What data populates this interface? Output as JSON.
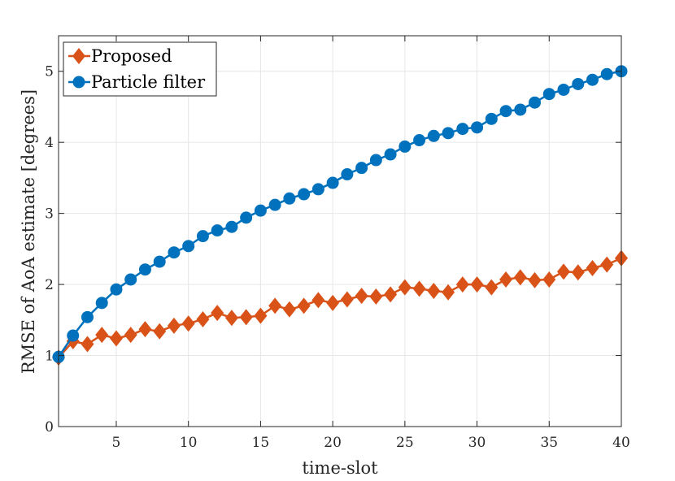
{
  "chart_data": {
    "type": "line",
    "xlabel": "time-slot",
    "ylabel": "RMSE of AoA estimate [degrees]",
    "xlim": [
      1,
      40
    ],
    "ylim": [
      0,
      5.5
    ],
    "xticks": [
      5,
      10,
      15,
      20,
      25,
      30,
      35,
      40
    ],
    "yticks": [
      0,
      1,
      2,
      3,
      4,
      5
    ],
    "grid": true,
    "legend_position": "top-left",
    "x": [
      1,
      2,
      3,
      4,
      5,
      6,
      7,
      8,
      9,
      10,
      11,
      12,
      13,
      14,
      15,
      16,
      17,
      18,
      19,
      20,
      21,
      22,
      23,
      24,
      25,
      26,
      27,
      28,
      29,
      30,
      31,
      32,
      33,
      34,
      35,
      36,
      37,
      38,
      39,
      40
    ],
    "series": [
      {
        "name": "Proposed",
        "color": "#D95319",
        "marker": "diamond",
        "values": [
          0.97,
          1.2,
          1.16,
          1.29,
          1.24,
          1.29,
          1.37,
          1.34,
          1.42,
          1.45,
          1.51,
          1.6,
          1.53,
          1.54,
          1.56,
          1.7,
          1.65,
          1.7,
          1.78,
          1.74,
          1.79,
          1.84,
          1.83,
          1.86,
          1.96,
          1.94,
          1.91,
          1.89,
          2.0,
          2.0,
          1.96,
          2.07,
          2.1,
          2.06,
          2.07,
          2.18,
          2.17,
          2.23,
          2.28,
          2.37
        ]
      },
      {
        "name": "Particle filter",
        "color": "#0072BD",
        "marker": "circle",
        "values": [
          0.98,
          1.28,
          1.54,
          1.74,
          1.93,
          2.07,
          2.21,
          2.32,
          2.45,
          2.54,
          2.68,
          2.76,
          2.81,
          2.94,
          3.04,
          3.12,
          3.21,
          3.27,
          3.34,
          3.43,
          3.55,
          3.64,
          3.75,
          3.83,
          3.94,
          4.03,
          4.09,
          4.13,
          4.19,
          4.21,
          4.33,
          4.44,
          4.46,
          4.56,
          4.68,
          4.74,
          4.82,
          4.88,
          4.96,
          5.0
        ]
      }
    ]
  }
}
